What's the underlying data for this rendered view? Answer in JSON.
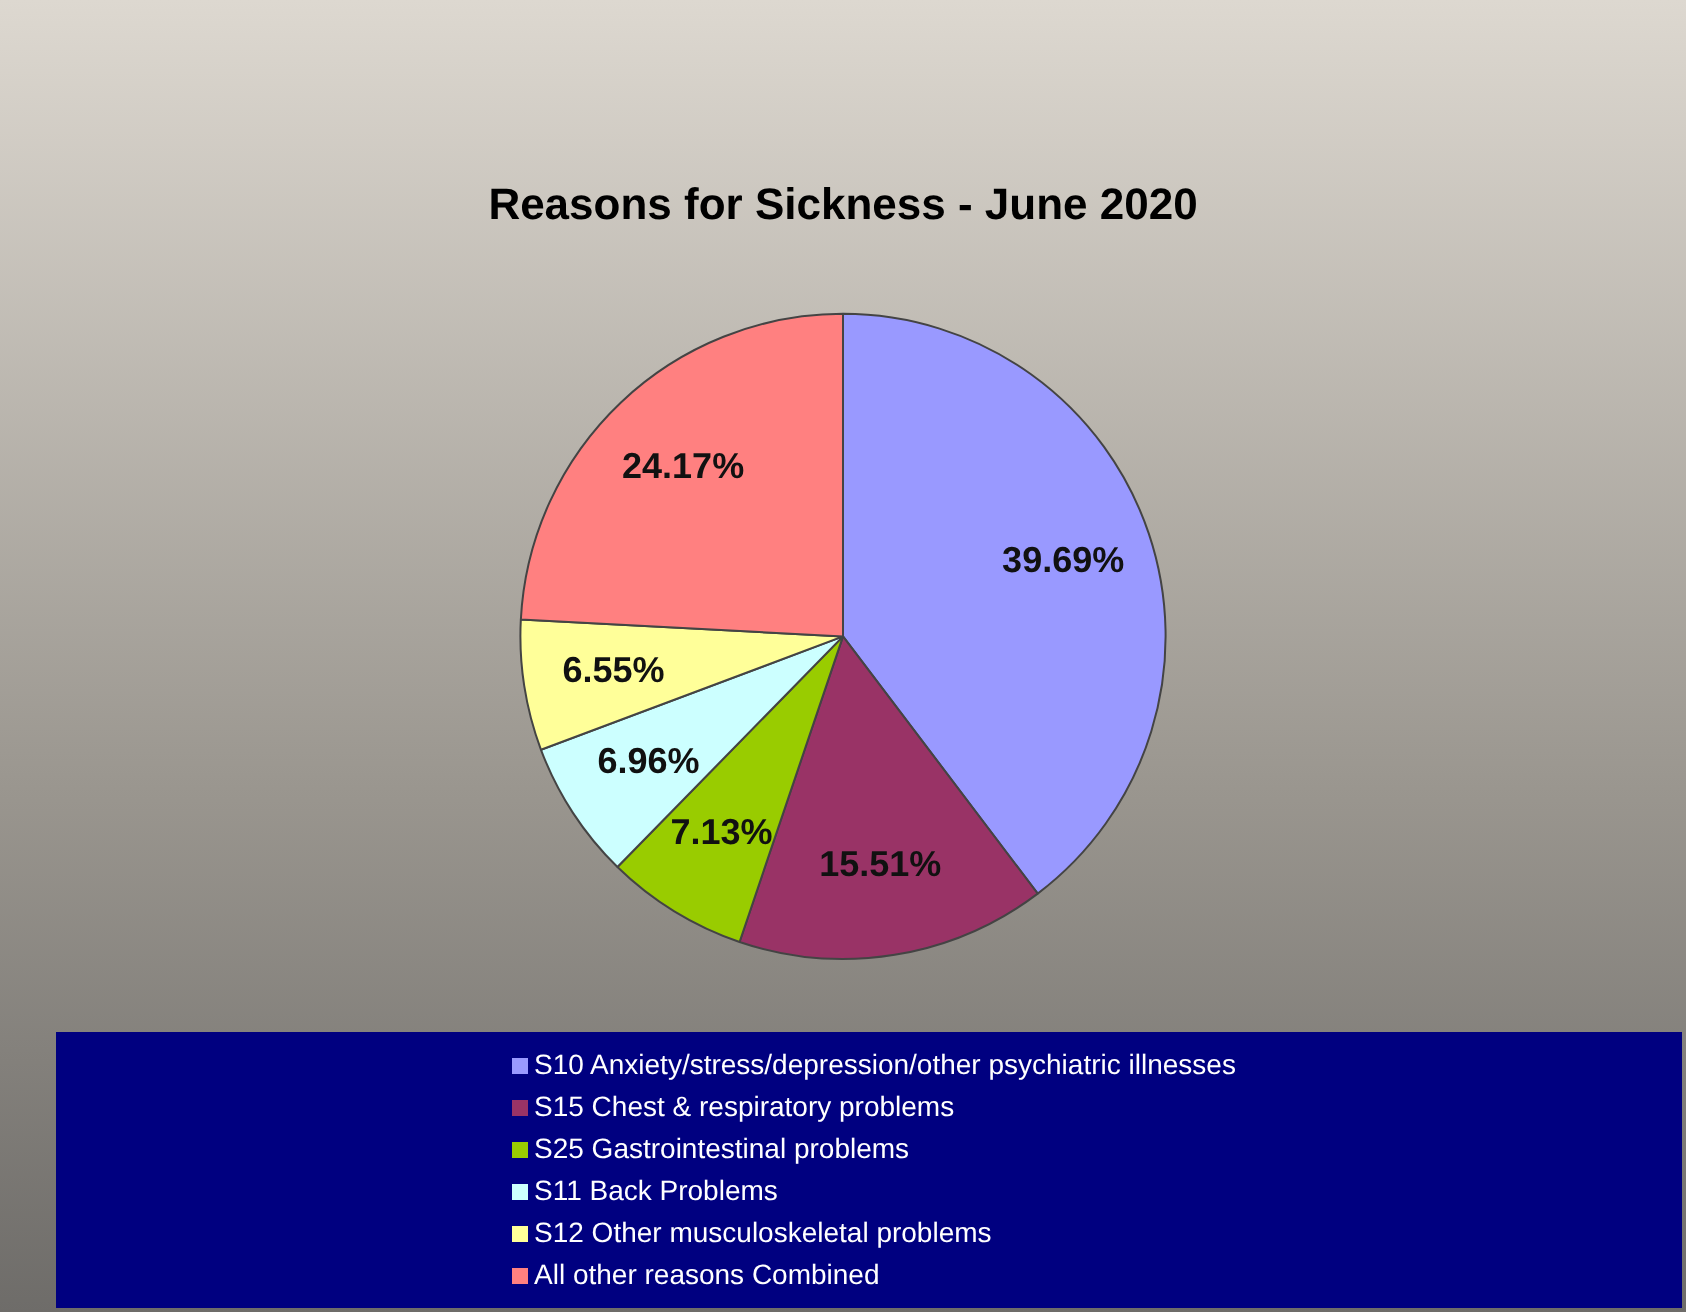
{
  "chart_data": {
    "type": "pie",
    "title": "Reasons for Sickness - June 2020",
    "categories": [
      "S10 Anxiety/stress/depression/other psychiatric illnesses",
      "S15 Chest & respiratory problems",
      "S25 Gastrointestinal problems",
      "S11 Back Problems",
      "S12 Other musculoskeletal problems",
      "All other reasons Combined"
    ],
    "values": [
      39.69,
      15.51,
      7.13,
      6.96,
      6.55,
      24.17
    ],
    "value_labels": [
      "39.69%",
      "15.51%",
      "7.13%",
      "6.96%",
      "6.55%",
      "24.17%"
    ],
    "colors": [
      "#9999ff",
      "#993366",
      "#99cc00",
      "#ccffff",
      "#ffff99",
      "#ff8080"
    ],
    "legend": "bottom"
  }
}
